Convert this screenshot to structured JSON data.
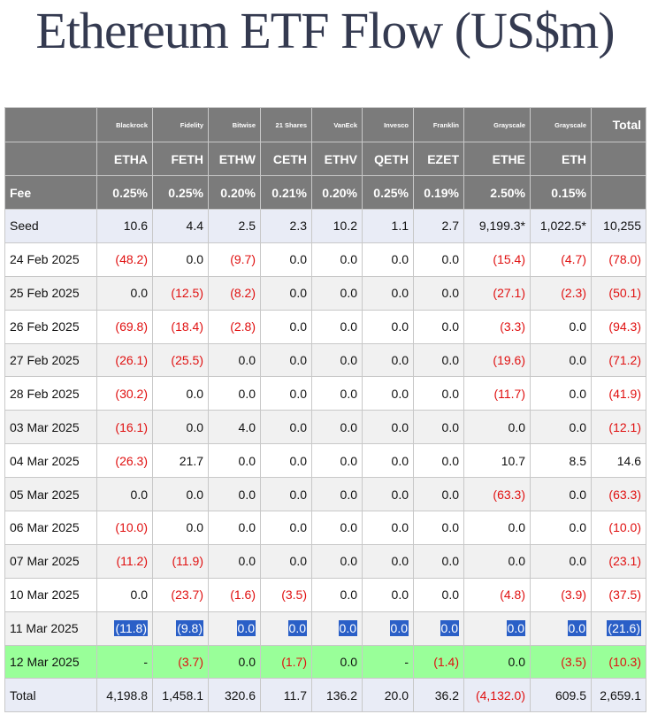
{
  "title": "Ethereum ETF Flow (US$m)",
  "table": {
    "fee_label": "Fee",
    "total_header": "Total",
    "columns": [
      {
        "issuer": "Blackrock",
        "ticker": "ETHA",
        "fee": "0.25%"
      },
      {
        "issuer": "Fidelity",
        "ticker": "FETH",
        "fee": "0.25%"
      },
      {
        "issuer": "Bitwise",
        "ticker": "ETHW",
        "fee": "0.20%"
      },
      {
        "issuer": "21 Shares",
        "ticker": "CETH",
        "fee": "0.21%"
      },
      {
        "issuer": "VanEck",
        "ticker": "ETHV",
        "fee": "0.20%"
      },
      {
        "issuer": "Invesco",
        "ticker": "QETH",
        "fee": "0.25%"
      },
      {
        "issuer": "Franklin",
        "ticker": "EZET",
        "fee": "0.19%"
      },
      {
        "issuer": "Grayscale",
        "ticker": "ETHE",
        "fee": "2.50%"
      },
      {
        "issuer": "Grayscale",
        "ticker": "ETH",
        "fee": "0.15%"
      }
    ],
    "rows": [
      {
        "label": "Seed",
        "style": "seed",
        "values": [
          "10.6",
          "4.4",
          "2.5",
          "2.3",
          "10.2",
          "1.1",
          "2.7",
          "9,199.3*",
          "1,022.5*",
          "10,255"
        ]
      },
      {
        "label": "24 Feb 2025",
        "style": "odd",
        "values": [
          "(48.2)",
          "0.0",
          "(9.7)",
          "0.0",
          "0.0",
          "0.0",
          "0.0",
          "(15.4)",
          "(4.7)",
          "(78.0)"
        ]
      },
      {
        "label": "25 Feb 2025",
        "style": "even",
        "values": [
          "0.0",
          "(12.5)",
          "(8.2)",
          "0.0",
          "0.0",
          "0.0",
          "0.0",
          "(27.1)",
          "(2.3)",
          "(50.1)"
        ]
      },
      {
        "label": "26 Feb 2025",
        "style": "odd",
        "values": [
          "(69.8)",
          "(18.4)",
          "(2.8)",
          "0.0",
          "0.0",
          "0.0",
          "0.0",
          "(3.3)",
          "0.0",
          "(94.3)"
        ]
      },
      {
        "label": "27 Feb 2025",
        "style": "even",
        "values": [
          "(26.1)",
          "(25.5)",
          "0.0",
          "0.0",
          "0.0",
          "0.0",
          "0.0",
          "(19.6)",
          "0.0",
          "(71.2)"
        ]
      },
      {
        "label": "28 Feb 2025",
        "style": "odd",
        "values": [
          "(30.2)",
          "0.0",
          "0.0",
          "0.0",
          "0.0",
          "0.0",
          "0.0",
          "(11.7)",
          "0.0",
          "(41.9)"
        ]
      },
      {
        "label": "03 Mar 2025",
        "style": "even",
        "values": [
          "(16.1)",
          "0.0",
          "4.0",
          "0.0",
          "0.0",
          "0.0",
          "0.0",
          "0.0",
          "0.0",
          "(12.1)"
        ]
      },
      {
        "label": "04 Mar 2025",
        "style": "odd",
        "values": [
          "(26.3)",
          "21.7",
          "0.0",
          "0.0",
          "0.0",
          "0.0",
          "0.0",
          "10.7",
          "8.5",
          "14.6"
        ]
      },
      {
        "label": "05 Mar 2025",
        "style": "even",
        "values": [
          "0.0",
          "0.0",
          "0.0",
          "0.0",
          "0.0",
          "0.0",
          "0.0",
          "(63.3)",
          "0.0",
          "(63.3)"
        ]
      },
      {
        "label": "06 Mar 2025",
        "style": "odd",
        "values": [
          "(10.0)",
          "0.0",
          "0.0",
          "0.0",
          "0.0",
          "0.0",
          "0.0",
          "0.0",
          "0.0",
          "(10.0)"
        ]
      },
      {
        "label": "07 Mar 2025",
        "style": "even",
        "values": [
          "(11.2)",
          "(11.9)",
          "0.0",
          "0.0",
          "0.0",
          "0.0",
          "0.0",
          "0.0",
          "0.0",
          "(23.1)"
        ]
      },
      {
        "label": "10 Mar 2025",
        "style": "odd",
        "values": [
          "0.0",
          "(23.7)",
          "(1.6)",
          "(3.5)",
          "0.0",
          "0.0",
          "0.0",
          "(4.8)",
          "(3.9)",
          "(37.5)"
        ]
      },
      {
        "label": "11 Mar 2025",
        "style": "even",
        "highlight": true,
        "values": [
          "(11.8)",
          "(9.8)",
          "0.0",
          "0.0",
          "0.0",
          "0.0",
          "0.0",
          "0.0",
          "0.0",
          "(21.6)"
        ]
      },
      {
        "label": "12 Mar 2025",
        "style": "today",
        "values": [
          "-",
          "(3.7)",
          "0.0",
          "(1.7)",
          "0.0",
          "-",
          "(1.4)",
          "0.0",
          "(3.5)",
          "(10.3)"
        ]
      },
      {
        "label": "Total",
        "style": "totalrow",
        "values": [
          "4,198.8",
          "1,458.1",
          "320.6",
          "11.7",
          "136.2",
          "20.0",
          "36.2",
          "(4,132.0)",
          "609.5",
          "2,659.1"
        ]
      }
    ]
  },
  "colors": {
    "title": "#343a50",
    "header_bg": "#7b7b7b",
    "negative": "#e01010",
    "today_row": "#99ff99",
    "seed_total_row": "#e9ecf6",
    "selection_highlight": "#2a5fc7"
  }
}
